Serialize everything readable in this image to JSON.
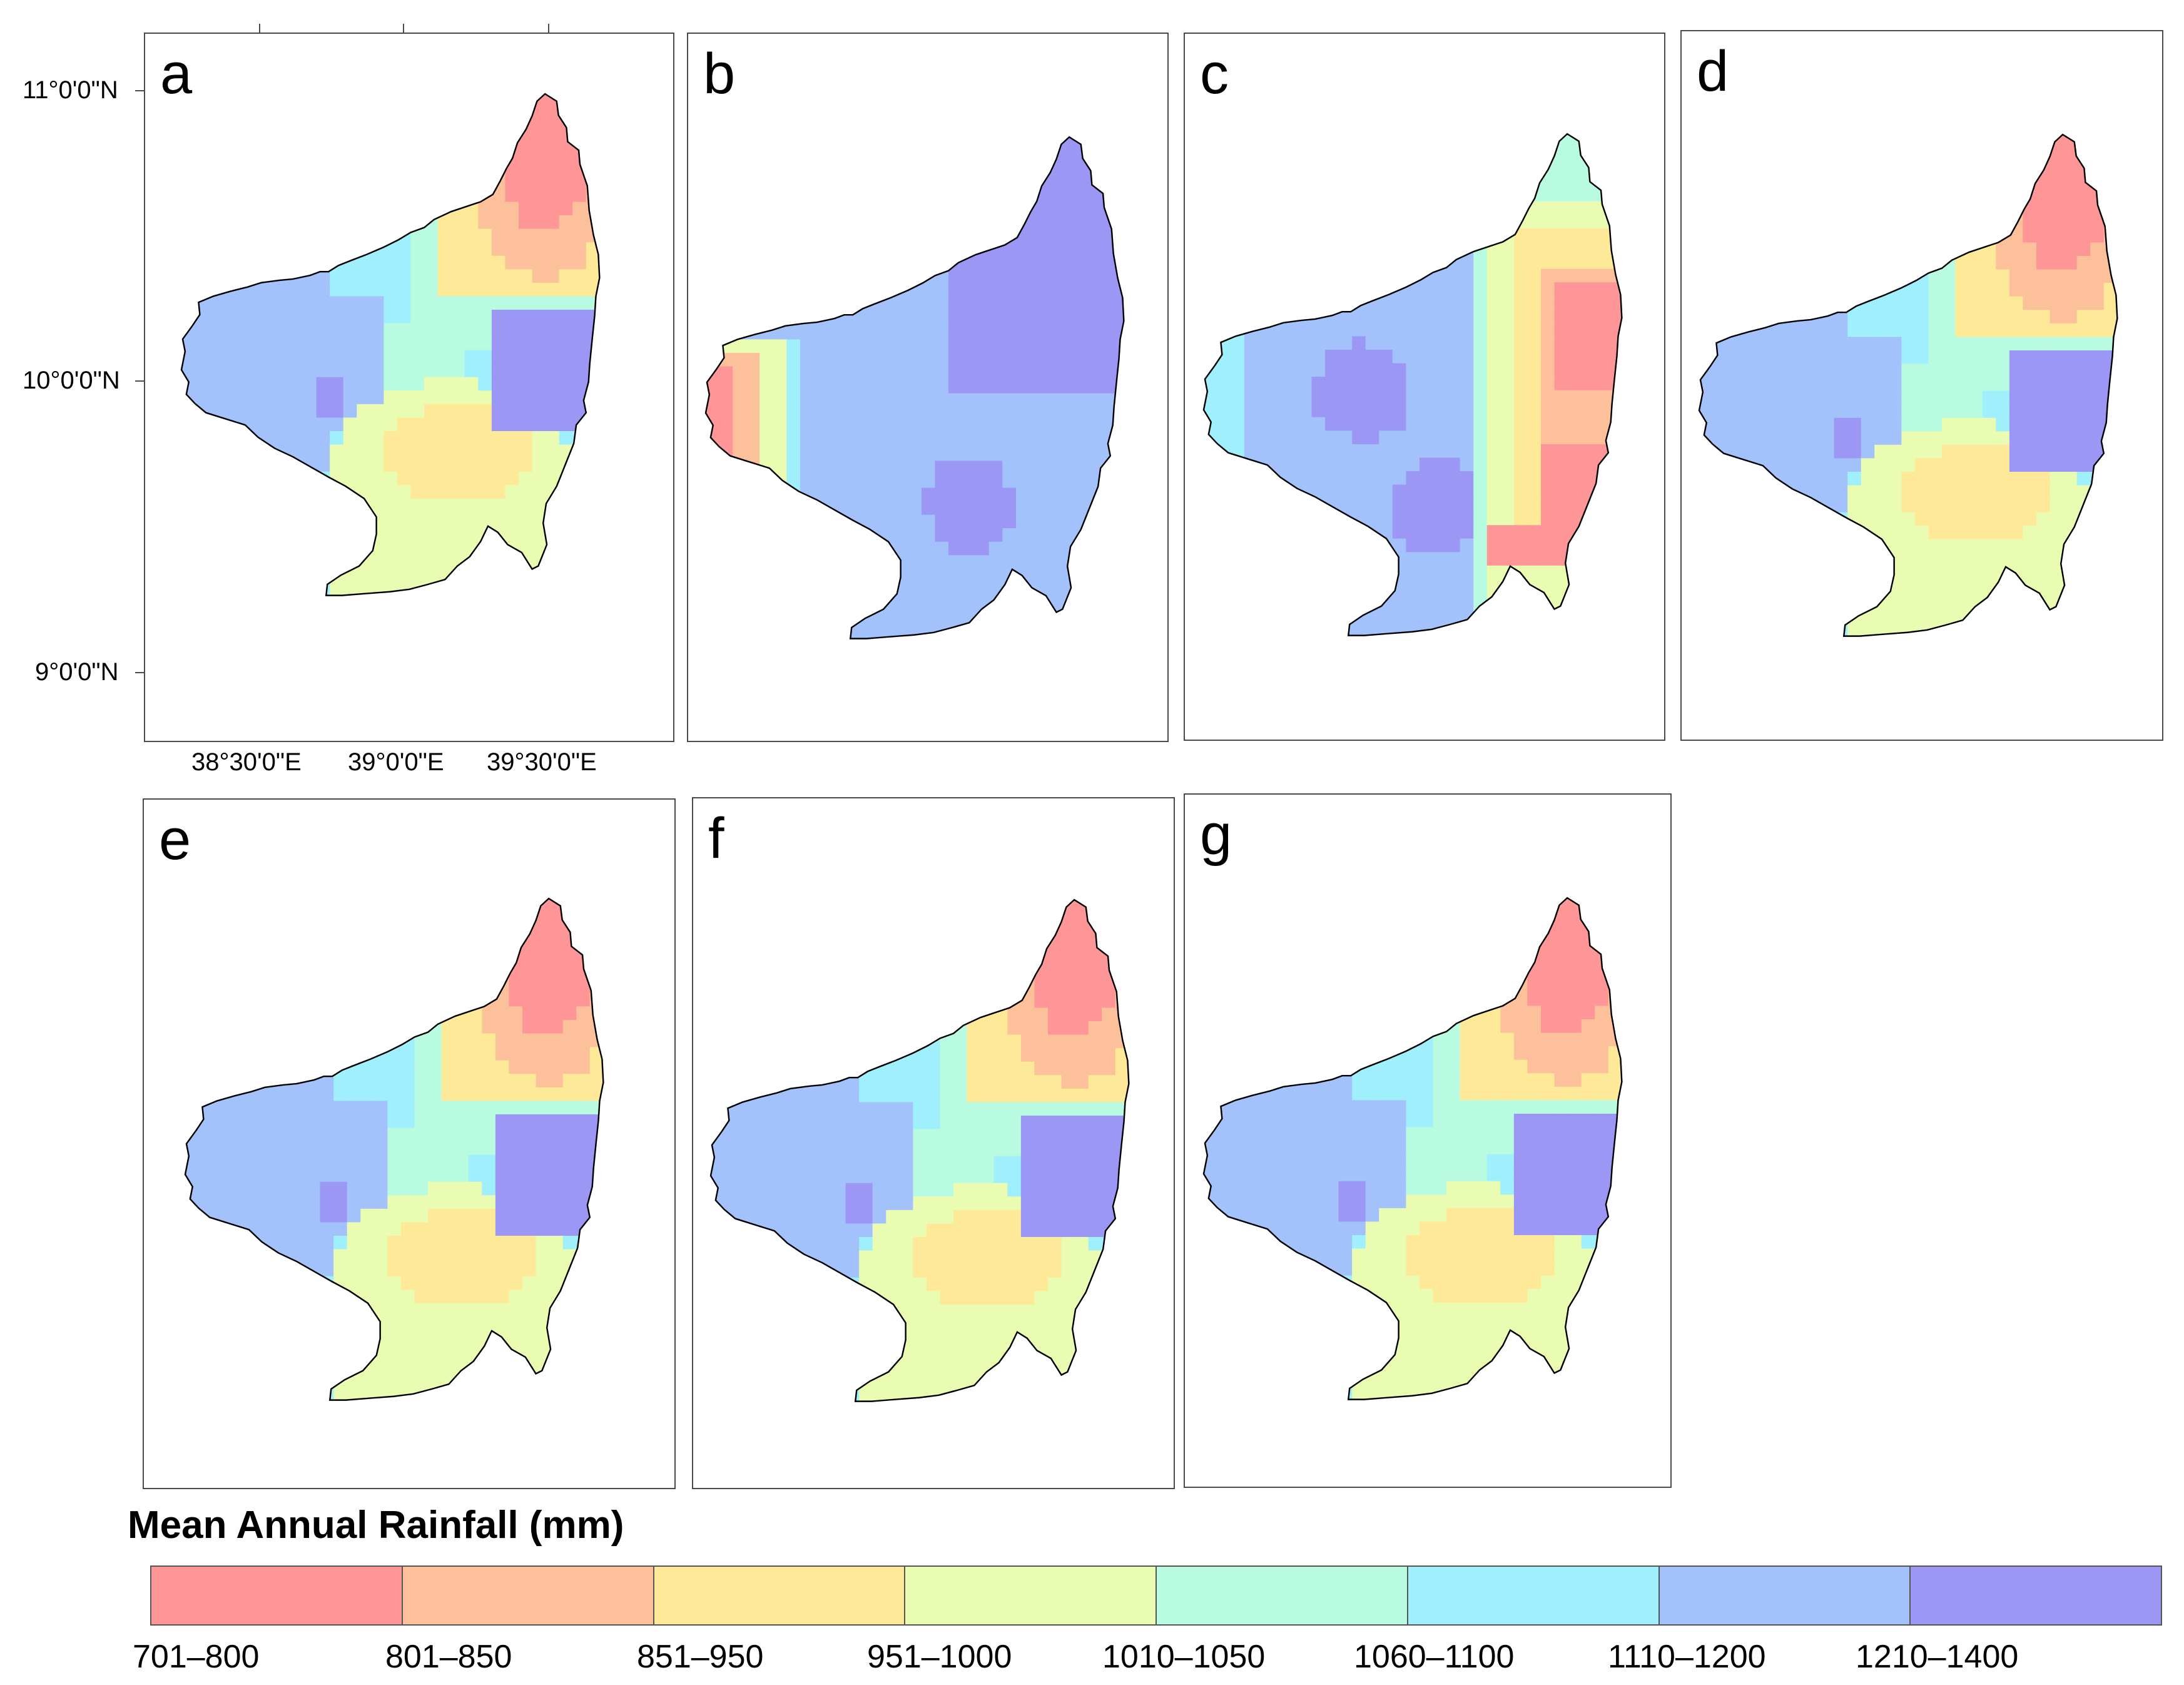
{
  "panels": [
    {
      "id": "a",
      "label": "a",
      "scenario": "a"
    },
    {
      "id": "b",
      "label": "b",
      "scenario": "b"
    },
    {
      "id": "c",
      "label": "c",
      "scenario": "c"
    },
    {
      "id": "d",
      "label": "d",
      "scenario": "a"
    },
    {
      "id": "e",
      "label": "e",
      "scenario": "a"
    },
    {
      "id": "f",
      "label": "f",
      "scenario": "a"
    },
    {
      "id": "g",
      "label": "g",
      "scenario": "a"
    }
  ],
  "axes": {
    "y_ticks": [
      "11°0'0\"N",
      "10°0'0\"N",
      "9°0'0\"N"
    ],
    "x_ticks": [
      "38°30'0\"E",
      "39°0'0\"E",
      "39°30'0\"E"
    ]
  },
  "legend": {
    "title": "Mean Annual Rainfall (mm)",
    "classes": [
      {
        "label": "701–800",
        "color": "#fe9697"
      },
      {
        "label": "801–850",
        "color": "#fcc19a"
      },
      {
        "label": "851–950",
        "color": "#fde998"
      },
      {
        "label": "951–1000",
        "color": "#e9fcb2"
      },
      {
        "label": "1010–1050",
        "color": "#b9fbe0"
      },
      {
        "label": "1060–1100",
        "color": "#9ff0fc"
      },
      {
        "label": "1110–1200",
        "color": "#a3c2fc"
      },
      {
        "label": "1210–1400",
        "color": "#9c97f5"
      }
    ]
  },
  "colors": {
    "boundary": "#000000",
    "frame": "#4a4a4a"
  }
}
